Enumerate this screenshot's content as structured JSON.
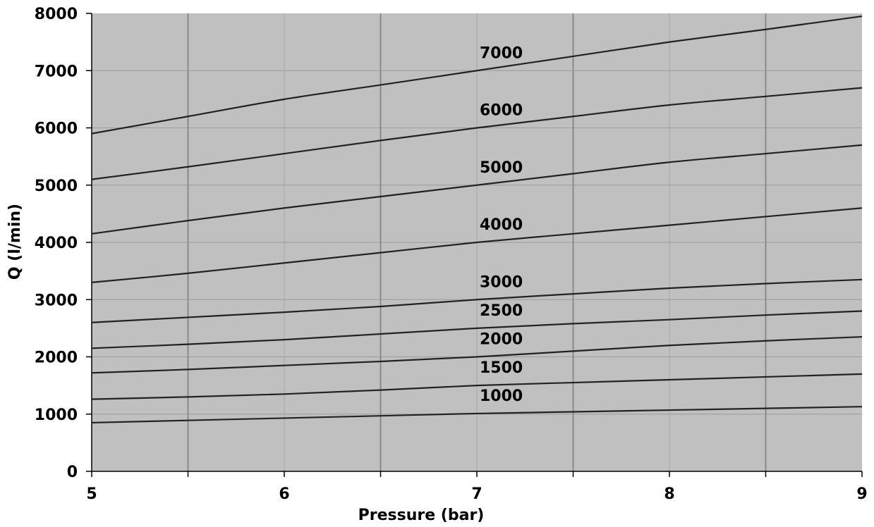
{
  "chart_data": {
    "type": "line",
    "title": "",
    "xlabel": "Pressure (bar)",
    "ylabel": "Q (l/min)",
    "xlim": [
      5,
      9
    ],
    "ylim": [
      0,
      8000
    ],
    "x_ticks": [
      "5",
      "6",
      "7",
      "8",
      "9"
    ],
    "y_ticks": [
      "0",
      "1000",
      "2000",
      "3000",
      "4000",
      "5000",
      "6000",
      "7000",
      "8000"
    ],
    "grid": true,
    "plot_background": "#c0c0c0",
    "line_color": "#222222",
    "x": [
      5,
      5.5,
      6,
      6.5,
      7,
      7.5,
      8,
      8.5,
      9
    ],
    "series": [
      {
        "name": "1000",
        "values": [
          850,
          890,
          930,
          970,
          1010,
          1040,
          1070,
          1100,
          1130
        ]
      },
      {
        "name": "1500",
        "values": [
          1260,
          1300,
          1350,
          1420,
          1500,
          1550,
          1600,
          1650,
          1700
        ]
      },
      {
        "name": "2000",
        "values": [
          1720,
          1780,
          1850,
          1920,
          2000,
          2100,
          2200,
          2280,
          2350
        ]
      },
      {
        "name": "2500",
        "values": [
          2150,
          2220,
          2300,
          2400,
          2500,
          2580,
          2650,
          2730,
          2800
        ]
      },
      {
        "name": "3000",
        "values": [
          2600,
          2690,
          2780,
          2880,
          3000,
          3100,
          3200,
          3280,
          3350
        ]
      },
      {
        "name": "4000",
        "values": [
          3300,
          3460,
          3640,
          3820,
          4000,
          4150,
          4300,
          4450,
          4600
        ]
      },
      {
        "name": "5000",
        "values": [
          4150,
          4380,
          4600,
          4800,
          5000,
          5200,
          5400,
          5550,
          5700
        ]
      },
      {
        "name": "6000",
        "values": [
          5100,
          5320,
          5550,
          5780,
          6000,
          6200,
          6400,
          6550,
          6700
        ]
      },
      {
        "name": "7000",
        "values": [
          5900,
          6200,
          6500,
          6750,
          7000,
          7250,
          7500,
          7720,
          7950
        ]
      }
    ]
  }
}
